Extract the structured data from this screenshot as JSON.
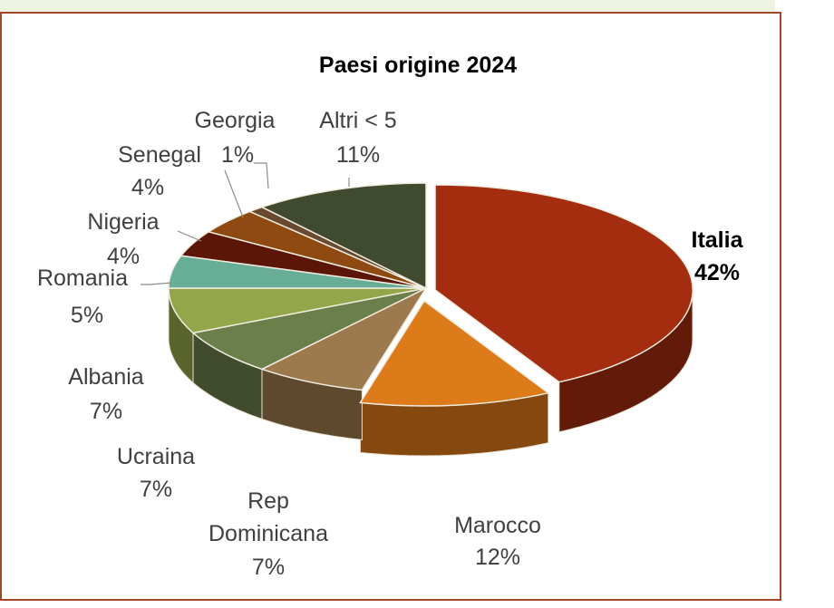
{
  "chart_data": {
    "type": "pie",
    "title": "Paesi origine 2024",
    "slices": [
      {
        "label": "Italia",
        "value": 42,
        "value_label": "42%",
        "color": "#a32d0e"
      },
      {
        "label": "Marocco",
        "value": 12,
        "value_label": "12%",
        "color": "#dd7a1a"
      },
      {
        "label": "Rep Dominicana",
        "value": 7,
        "value_label": "7%",
        "color": "#9c7a4e"
      },
      {
        "label": "Ucraina",
        "value": 7,
        "value_label": "7%",
        "color": "#6b7f4a"
      },
      {
        "label": "Albania",
        "value": 7,
        "value_label": "7%",
        "color": "#93a64a"
      },
      {
        "label": "Romania",
        "value": 5,
        "value_label": "5%",
        "color": "#68ad95"
      },
      {
        "label": "Nigeria",
        "value": 4,
        "value_label": "4%",
        "color": "#5c1608"
      },
      {
        "label": "Senegal",
        "value": 4,
        "value_label": "4%",
        "color": "#8e4a10"
      },
      {
        "label": "Georgia",
        "value": 1,
        "value_label": "1%",
        "color": "#6a4a2e"
      },
      {
        "label": "Altri < 5",
        "value": 11,
        "value_label": "11%",
        "color": "#3f4a2e"
      }
    ],
    "style": "3d-exploded",
    "legend": "none"
  }
}
